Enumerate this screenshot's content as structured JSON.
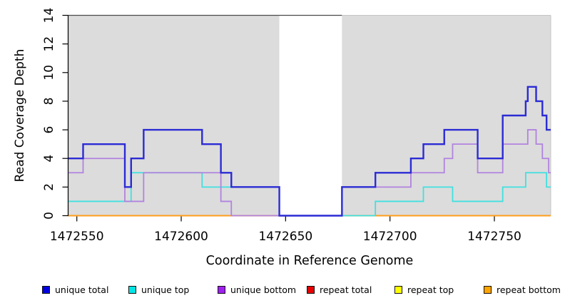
{
  "chart_data": {
    "type": "line",
    "subtype": "step-coverage",
    "xlabel": "Coordinate in Reference Genome",
    "ylabel": "Read Coverage Depth",
    "xlim": [
      1472546,
      1472777
    ],
    "ylim": [
      0,
      14
    ],
    "x_ticks": [
      1472550,
      1472600,
      1472650,
      1472700,
      1472750
    ],
    "x_tick_labels": [
      "1472550",
      "1472600",
      "1472650",
      "1472700",
      "1472750"
    ],
    "y_ticks": [
      0,
      2,
      4,
      6,
      8,
      10,
      12,
      14
    ],
    "y_tick_labels": [
      "0",
      "2",
      "4",
      "6",
      "8",
      "10",
      "12",
      "14"
    ],
    "grid": false,
    "plot_background": "#dcdcdc",
    "gap_band": {
      "x0": 1472647,
      "x1": 1472677,
      "color": "#ffffff"
    },
    "series": [
      {
        "name": "repeat total",
        "color": "#d40000",
        "width": 1.8,
        "points": [
          [
            1472546,
            0
          ],
          [
            1472777,
            0
          ]
        ]
      },
      {
        "name": "repeat top",
        "color": "#f0f000",
        "width": 1.8,
        "points": [
          [
            1472546,
            0
          ],
          [
            1472777,
            0
          ]
        ]
      },
      {
        "name": "repeat bottom",
        "color": "#ff9e1b",
        "width": 2.0,
        "points": [
          [
            1472546,
            0
          ],
          [
            1472777,
            0
          ]
        ]
      },
      {
        "name": "unique top",
        "color": "#40e0e0",
        "width": 1.8,
        "points": [
          [
            1472546,
            1
          ],
          [
            1472576,
            3
          ],
          [
            1472610,
            2
          ],
          [
            1472647,
            0
          ],
          [
            1472693,
            1
          ],
          [
            1472716,
            2
          ],
          [
            1472730,
            1
          ],
          [
            1472754,
            2
          ],
          [
            1472765,
            3
          ],
          [
            1472775,
            2
          ],
          [
            1472777,
            2
          ]
        ]
      },
      {
        "name": "unique bottom",
        "color": "#b183df",
        "width": 1.8,
        "points": [
          [
            1472546,
            3
          ],
          [
            1472553,
            4
          ],
          [
            1472573,
            1
          ],
          [
            1472582,
            3
          ],
          [
            1472619,
            1
          ],
          [
            1472624,
            0
          ],
          [
            1472677,
            2
          ],
          [
            1472710,
            3
          ],
          [
            1472726,
            4
          ],
          [
            1472730,
            5
          ],
          [
            1472742,
            3
          ],
          [
            1472754,
            5
          ],
          [
            1472766,
            6
          ],
          [
            1472770,
            5
          ],
          [
            1472773,
            4
          ],
          [
            1472776,
            3
          ],
          [
            1472777,
            3
          ]
        ]
      },
      {
        "name": "unique total",
        "color": "#2b2bd5",
        "width": 2.4,
        "points": [
          [
            1472546,
            4
          ],
          [
            1472553,
            5
          ],
          [
            1472573,
            2
          ],
          [
            1472576,
            4
          ],
          [
            1472582,
            6
          ],
          [
            1472610,
            5
          ],
          [
            1472619,
            3
          ],
          [
            1472624,
            2
          ],
          [
            1472647,
            0
          ],
          [
            1472677,
            2
          ],
          [
            1472693,
            3
          ],
          [
            1472710,
            4
          ],
          [
            1472716,
            5
          ],
          [
            1472726,
            6
          ],
          [
            1472742,
            4
          ],
          [
            1472754,
            7
          ],
          [
            1472765,
            8
          ],
          [
            1472766,
            9
          ],
          [
            1472770,
            8
          ],
          [
            1472773,
            7
          ],
          [
            1472775,
            6
          ],
          [
            1472777,
            6
          ]
        ]
      }
    ],
    "legend": [
      {
        "label": "unique total",
        "color": "#0000e0"
      },
      {
        "label": "unique top",
        "color": "#00e5e5"
      },
      {
        "label": "unique bottom",
        "color": "#a020f0"
      },
      {
        "label": "repeat total",
        "color": "#e60000"
      },
      {
        "label": "repeat top",
        "color": "#ffff00"
      },
      {
        "label": "repeat bottom",
        "color": "#ffa500"
      }
    ],
    "legend_position": "bottom"
  }
}
